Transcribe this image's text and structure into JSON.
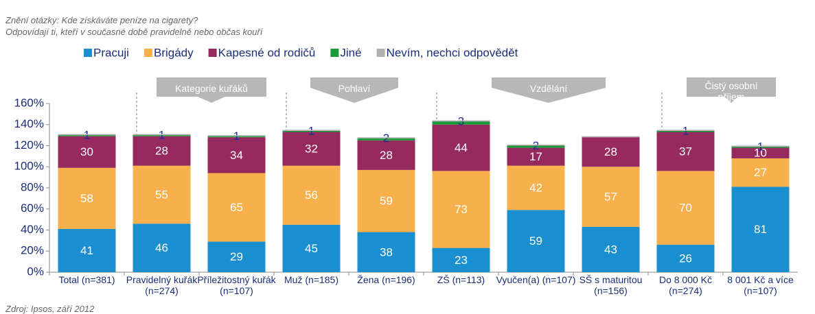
{
  "chart_data": {
    "type": "stacked_bar",
    "subtitle": [
      "Znění otázky: Kde získáváte peníze na cigarety?",
      "Odpovídají ti, kteří v současné době pravidelně nebo občas kouří"
    ],
    "source": "Zdroj: Ipsos, září 2012",
    "groups": [
      "Kategorie kuřáků",
      "Pohlaví",
      "Vzdělání",
      "Čistý osobní příjem"
    ],
    "categories": [
      "Total (n=381)",
      "Pravidelný kuřák (n=274)",
      "Příležitostný kuřák (n=107)",
      "Muž (n=185)",
      "Žena (n=196)",
      "ZŠ (n=113)",
      "Vyučen(a) (n=107)",
      "SŠ s maturitou (n=156)",
      "Do 8 000 Kč (n=274)",
      "8 001 Kč a více (n=107)"
    ],
    "series": [
      {
        "name": "Pracuji",
        "color": "#1a8fd0",
        "values": [
          41,
          46,
          29,
          45,
          38,
          23,
          59,
          43,
          26,
          81
        ]
      },
      {
        "name": "Brigády",
        "color": "#f8b04c",
        "values": [
          58,
          55,
          65,
          56,
          59,
          73,
          42,
          57,
          70,
          27
        ]
      },
      {
        "name": "Kapesné od rodičů",
        "color": "#962a5f",
        "values": [
          30,
          28,
          34,
          32,
          28,
          44,
          17,
          28,
          37,
          10
        ]
      },
      {
        "name": "Jiné",
        "color": "#1b9a3a",
        "values": [
          1,
          1,
          1,
          1,
          2,
          3,
          2,
          null,
          1,
          1
        ]
      },
      {
        "name": "Nevím, nechci odpovědět",
        "color": "#b0b0b0",
        "values": [
          1,
          1,
          1,
          1,
          1,
          1,
          1,
          1,
          1,
          1
        ],
        "labels": false
      }
    ],
    "ylim": [
      0,
      160
    ],
    "yticks": [
      {
        "value": 0,
        "label": "0%"
      },
      {
        "value": 20,
        "label": "20%"
      },
      {
        "value": 40,
        "label": "40%"
      },
      {
        "value": 60,
        "label": "60%"
      },
      {
        "value": 80,
        "label": "80%"
      },
      {
        "value": 100,
        "label": "100%"
      },
      {
        "value": 120,
        "label": "120%"
      },
      {
        "value": 140,
        "label": "140%"
      },
      {
        "value": 160,
        "label": "160%"
      }
    ],
    "legend": "top"
  }
}
